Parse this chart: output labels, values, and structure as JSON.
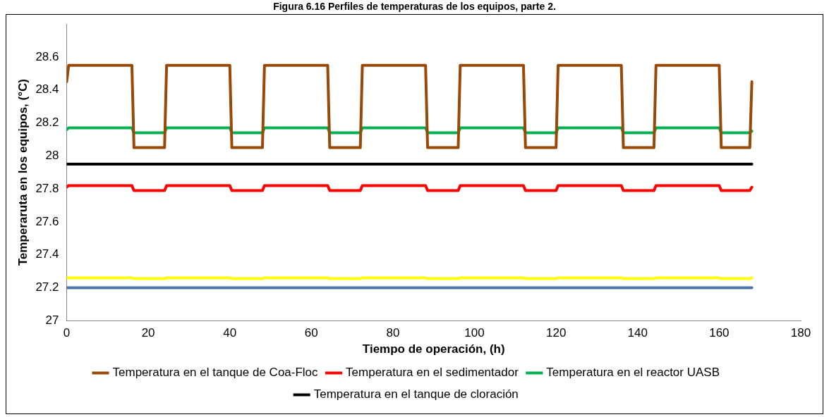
{
  "chart_data": {
    "type": "line",
    "title": "Figura 6.16 Perfiles de temperaturas de los equipos, parte 2.",
    "xlabel": "Tiempo de operación, (h)",
    "ylabel": "Temperaruta en los equipos, (°C)",
    "xlim": [
      0,
      180
    ],
    "xticks": [
      0,
      20,
      40,
      60,
      80,
      100,
      120,
      140,
      160,
      180
    ],
    "ylim": [
      27,
      28.8
    ],
    "yticks": [
      27,
      27.2,
      27.4,
      27.6,
      27.8,
      28,
      28.2,
      28.4,
      28.6
    ],
    "grid": false,
    "legend": "bottom",
    "marker": "none",
    "line_style": "solid",
    "series": [
      {
        "name": "Temperatura en el tanque de Coa-Floc",
        "color": "#984807",
        "x": [
          0,
          0.5,
          16,
          16.5,
          24,
          24.5,
          40,
          40.5,
          48,
          48.5,
          64,
          64.5,
          72,
          72.5,
          88,
          88.5,
          96,
          96.5,
          112,
          112.5,
          120,
          120.5,
          136,
          136.5,
          144,
          144.5,
          160,
          160.5,
          167.5,
          168
        ],
        "values": [
          28.45,
          28.55,
          28.55,
          28.05,
          28.05,
          28.55,
          28.55,
          28.05,
          28.05,
          28.55,
          28.55,
          28.05,
          28.05,
          28.55,
          28.55,
          28.05,
          28.05,
          28.55,
          28.55,
          28.05,
          28.05,
          28.55,
          28.55,
          28.05,
          28.05,
          28.55,
          28.55,
          28.05,
          28.05,
          28.45
        ]
      },
      {
        "name": "Temperatura en el sedimentador",
        "color": "#ff0000",
        "x": [
          0,
          0.5,
          16,
          16.5,
          24,
          24.5,
          40,
          40.5,
          48,
          48.5,
          64,
          64.5,
          72,
          72.5,
          88,
          88.5,
          96,
          96.5,
          112,
          112.5,
          120,
          120.5,
          136,
          136.5,
          144,
          144.5,
          160,
          160.5,
          167.5,
          168
        ],
        "values": [
          27.81,
          27.82,
          27.82,
          27.79,
          27.79,
          27.82,
          27.82,
          27.79,
          27.79,
          27.82,
          27.82,
          27.79,
          27.79,
          27.82,
          27.82,
          27.79,
          27.79,
          27.82,
          27.82,
          27.79,
          27.79,
          27.82,
          27.82,
          27.79,
          27.79,
          27.82,
          27.82,
          27.79,
          27.79,
          27.81
        ]
      },
      {
        "name": "Temperatura en el reactor UASB",
        "color": "#00b050",
        "x": [
          0,
          0.5,
          16,
          16.5,
          24,
          24.5,
          40,
          40.5,
          48,
          48.5,
          64,
          64.5,
          72,
          72.5,
          88,
          88.5,
          96,
          96.5,
          112,
          112.5,
          120,
          120.5,
          136,
          136.5,
          144,
          144.5,
          160,
          160.5,
          167.5,
          168
        ],
        "values": [
          28.16,
          28.17,
          28.17,
          28.14,
          28.14,
          28.17,
          28.17,
          28.14,
          28.14,
          28.17,
          28.17,
          28.14,
          28.14,
          28.17,
          28.17,
          28.14,
          28.14,
          28.17,
          28.17,
          28.14,
          28.14,
          28.17,
          28.17,
          28.14,
          28.14,
          28.17,
          28.17,
          28.14,
          28.14,
          28.15
        ]
      },
      {
        "name": "Temperatura en el tanque de cloración",
        "color": "#000000",
        "x": [
          0,
          168
        ],
        "values": [
          27.95,
          27.95
        ]
      },
      {
        "color": "#ffff00",
        "x": [
          0,
          0.5,
          16,
          16.5,
          24,
          24.5,
          40,
          40.5,
          48,
          48.5,
          64,
          64.5,
          72,
          72.5,
          88,
          88.5,
          96,
          96.5,
          112,
          112.5,
          120,
          120.5,
          136,
          136.5,
          144,
          144.5,
          160,
          160.5,
          167.5,
          168
        ],
        "values": [
          27.26,
          27.26,
          27.26,
          27.255,
          27.255,
          27.26,
          27.26,
          27.255,
          27.255,
          27.26,
          27.26,
          27.255,
          27.255,
          27.26,
          27.26,
          27.255,
          27.255,
          27.26,
          27.26,
          27.255,
          27.255,
          27.26,
          27.26,
          27.255,
          27.255,
          27.26,
          27.26,
          27.255,
          27.255,
          27.26
        ]
      },
      {
        "color": "#4a72a8",
        "x": [
          0,
          168
        ],
        "values": [
          27.2,
          27.2
        ]
      }
    ]
  }
}
